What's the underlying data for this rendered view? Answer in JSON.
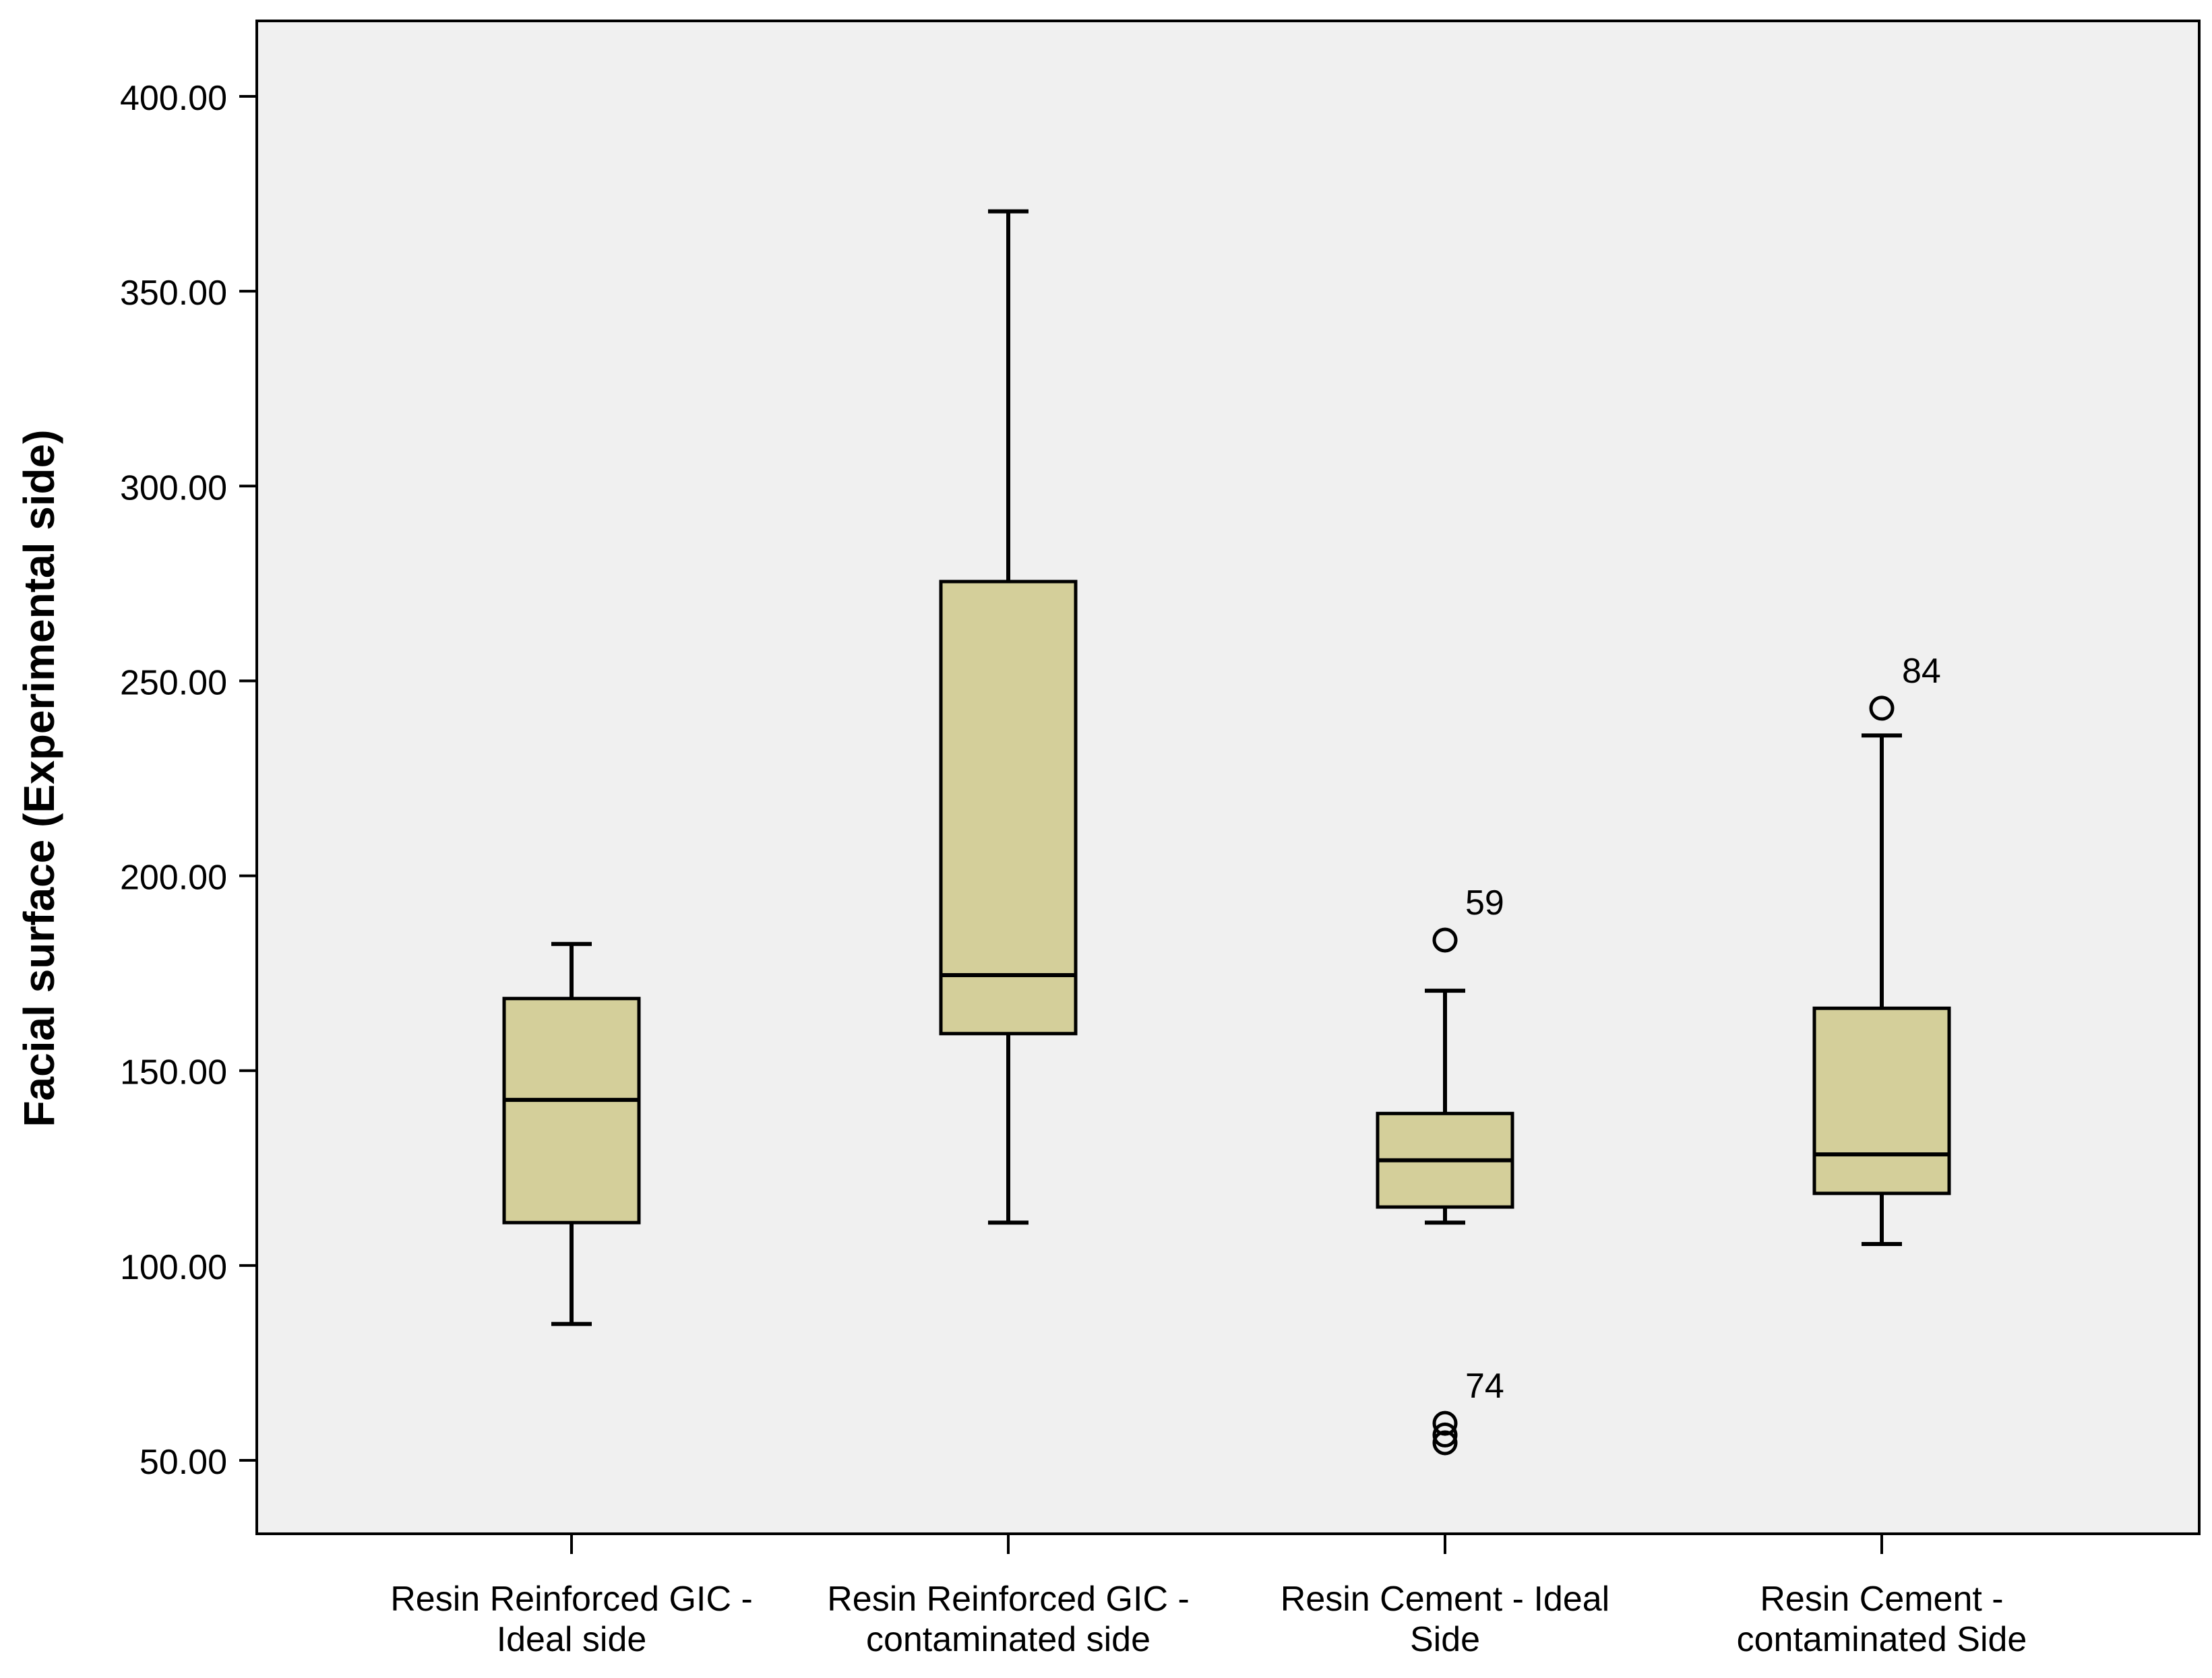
{
  "chart_data": {
    "type": "box",
    "title": "",
    "xlabel": "",
    "ylabel": "Facial surface (Experimental side)",
    "ylim": [
      30,
      420
    ],
    "yticks": [
      50,
      100,
      150,
      200,
      250,
      300,
      350,
      400
    ],
    "ytick_labels": [
      "50.00",
      "100.00",
      "150.00",
      "200.00",
      "250.00",
      "300.00",
      "350.00",
      "400.00"
    ],
    "grid": false,
    "legend": "none",
    "colors": {
      "plot_background": "#f0f0f0",
      "box_fill": "#d4cf9a",
      "stroke": "#000000"
    },
    "categories": [
      [
        "Resin Reinforced GIC -",
        "Ideal side"
      ],
      [
        "Resin Reinforced GIC -",
        "contaminated side"
      ],
      [
        "Resin Cement - Ideal",
        "Side"
      ],
      [
        "Resin Cement -",
        "contaminated Side"
      ]
    ],
    "boxes": [
      {
        "whisker_low": 85,
        "q1": 111,
        "median": 142.5,
        "q3": 168.5,
        "whisker_high": 182.5,
        "outliers": []
      },
      {
        "whisker_low": 111,
        "q1": 159.5,
        "median": 174.5,
        "q3": 275.5,
        "whisker_high": 370.5,
        "outliers": []
      },
      {
        "whisker_low": 111,
        "q1": 115,
        "median": 127,
        "q3": 139,
        "whisker_high": 170.5,
        "outliers": [
          {
            "value": 183.5,
            "label": "59"
          },
          {
            "value": 59.5,
            "label": "74"
          },
          {
            "value": 56.5,
            "label": ""
          },
          {
            "value": 54.5,
            "label": ""
          }
        ]
      },
      {
        "whisker_low": 105.5,
        "q1": 118.5,
        "median": 128.5,
        "q3": 166,
        "whisker_high": 236,
        "outliers": [
          {
            "value": 243,
            "label": "84"
          }
        ]
      }
    ]
  }
}
